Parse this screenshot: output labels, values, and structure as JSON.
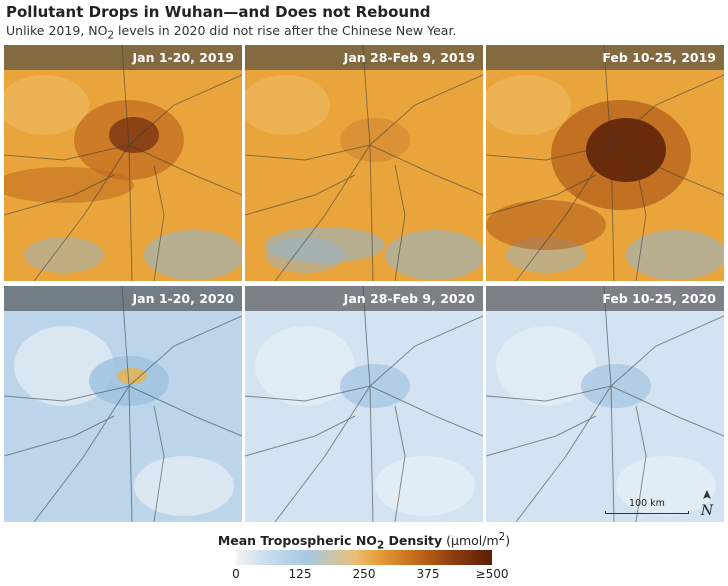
{
  "title": "Pollutant Drops in Wuhan—and Does not Rebound",
  "subtitle_html": "Unlike 2019, NO<sub>2</sub> levels in 2020 did not rise after the Chinese New Year.",
  "panels": [
    {
      "label": "Jan 1-20, 2019",
      "year": "2019",
      "period": "Jan 1-20"
    },
    {
      "label": "Jan 28-Feb 9, 2019",
      "year": "2019",
      "period": "Jan 28-Feb 9"
    },
    {
      "label": "Feb 10-25, 2019",
      "year": "2019",
      "period": "Feb 10-25"
    },
    {
      "label": "Jan 1-20, 2020",
      "year": "2020",
      "period": "Jan 1-20"
    },
    {
      "label": "Jan 28-Feb 9, 2020",
      "year": "2020",
      "period": "Jan 28-Feb 9"
    },
    {
      "label": "Feb 10-25, 2020",
      "year": "2020",
      "period": "Feb 10-25"
    }
  ],
  "scale_bar": {
    "label": "100 km"
  },
  "north_arrow": {
    "label": "N",
    "icon": "north-arrow-icon"
  },
  "legend": {
    "title": "Mean Tropospheric NO",
    "title_sub": "2",
    "title_suffix": " Density",
    "units_html": "(μmol/m<sup>2</sup>)",
    "ticks": [
      "0",
      "125",
      "250",
      "375",
      "≥500"
    ],
    "colors": [
      "#f2f5f8",
      "#a8c8e3",
      "#e5a13a",
      "#c46a1b",
      "#5a1f07"
    ]
  },
  "colors": {
    "blue_low": "#aecbe6",
    "light_low": "#dbe7f1",
    "orange_mid": "#e7a43a",
    "brown_high": "#5a1f07",
    "panel_label_bg": "#555555"
  }
}
